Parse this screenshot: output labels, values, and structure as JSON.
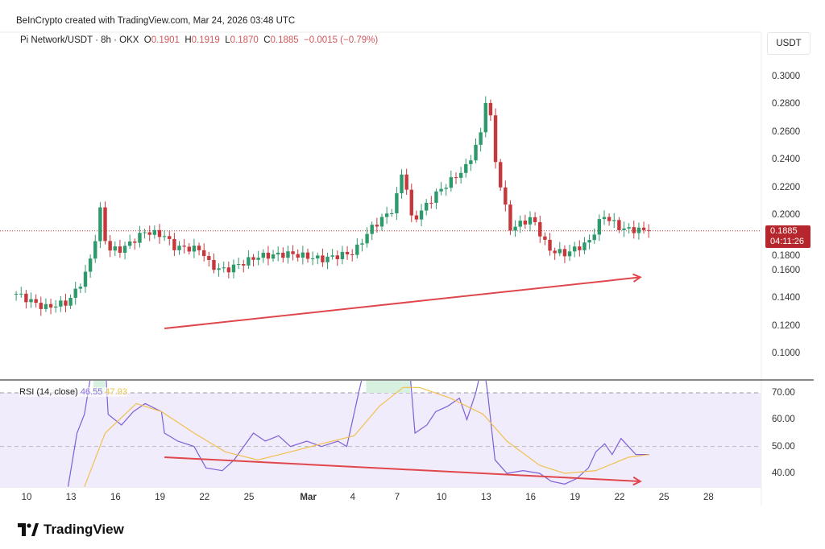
{
  "header": {
    "credit": "BeInCrypto created with TradingView.com, Mar 24, 2026 03:48 UTC",
    "symbol": "Pi Network/USDT · 8h · OKX",
    "o_label": "O",
    "o": "0.1901",
    "h_label": "H",
    "h": "0.1919",
    "l_label": "L",
    "l": "0.1870",
    "c_label": "C",
    "c": "0.1885",
    "change": "−0.0015 (−0.79%)"
  },
  "currency": "USDT",
  "last_price": {
    "price": "0.1885",
    "countdown": "04:11:26"
  },
  "rsi_legend": {
    "label": "RSI (14, close)",
    "rsi": "46.55",
    "ma": "47.93"
  },
  "brand": "TradingView",
  "colors": {
    "up": "#2e9a6c",
    "down": "#c7383d",
    "rsi": "#7e5fd6",
    "ma": "#f0c050",
    "arrow": "#e0474c",
    "rsi_band": "#f1ecfb"
  },
  "chart_data": [
    {
      "type": "candlestick",
      "title": "Pi Network/USDT 8h",
      "ylim": [
        0.085,
        0.31
      ],
      "yticks": [
        "0.3000",
        "0.2800",
        "0.2600",
        "0.2400",
        "0.2200",
        "0.2000",
        "0.1800",
        "0.1600",
        "0.1400",
        "0.1200",
        "0.1000"
      ],
      "ytick_values": [
        0.3,
        0.28,
        0.26,
        0.24,
        0.22,
        0.2,
        0.18,
        0.16,
        0.14,
        0.12,
        0.1
      ],
      "xticks": [
        "10",
        "13",
        "16",
        "19",
        "22",
        "25",
        "Mar",
        "4",
        "7",
        "10",
        "13",
        "16",
        "19",
        "22",
        "25",
        "28"
      ],
      "xtick_days": [
        0,
        3,
        6,
        9,
        12,
        15,
        19,
        22,
        25,
        28,
        31,
        34,
        37,
        40,
        43,
        46
      ],
      "close_keypoints_day_price": [
        [
          -0.7,
          0.143
        ],
        [
          1.2,
          0.133
        ],
        [
          2.8,
          0.137
        ],
        [
          3.9,
          0.155
        ],
        [
          4.5,
          0.175
        ],
        [
          5.0,
          0.205
        ],
        [
          5.4,
          0.175
        ],
        [
          6.4,
          0.175
        ],
        [
          8.0,
          0.188
        ],
        [
          9.3,
          0.185
        ],
        [
          9.9,
          0.177
        ],
        [
          11.8,
          0.175
        ],
        [
          12.4,
          0.163
        ],
        [
          13.4,
          0.16
        ],
        [
          15.6,
          0.17
        ],
        [
          17.8,
          0.172
        ],
        [
          19.9,
          0.168
        ],
        [
          22.1,
          0.173
        ],
        [
          23.2,
          0.19
        ],
        [
          24.8,
          0.205
        ],
        [
          25.4,
          0.235
        ],
        [
          26.0,
          0.195
        ],
        [
          27.6,
          0.215
        ],
        [
          29.7,
          0.235
        ],
        [
          30.7,
          0.26
        ],
        [
          31.1,
          0.295
        ],
        [
          31.5,
          0.245
        ],
        [
          32.2,
          0.21
        ],
        [
          32.6,
          0.19
        ],
        [
          34.1,
          0.198
        ],
        [
          35.2,
          0.175
        ],
        [
          36.3,
          0.172
        ],
        [
          37.9,
          0.18
        ],
        [
          38.9,
          0.2
        ],
        [
          40.1,
          0.19
        ],
        [
          42.1,
          0.1885
        ]
      ],
      "trendline": {
        "from": [
          9.3,
          0.118
        ],
        "to": [
          41.4,
          0.155
        ],
        "direction": "rising"
      }
    },
    {
      "type": "line",
      "title": "RSI (14, close)",
      "ylim": [
        35,
        72
      ],
      "yticks": [
        "70.00",
        "60.00",
        "50.00",
        "40.00"
      ],
      "ytick_values": [
        70,
        60,
        50,
        40
      ],
      "series": [
        {
          "name": "RSI",
          "values_day": [
            [
              2.8,
              35
            ],
            [
              3.4,
              55
            ],
            [
              3.9,
              62
            ],
            [
              4.5,
              82
            ],
            [
              5.3,
              82
            ],
            [
              5.5,
              62
            ],
            [
              6.4,
              58
            ],
            [
              7.2,
              63
            ],
            [
              8.0,
              66
            ],
            [
              9.1,
              63
            ],
            [
              9.3,
              55
            ],
            [
              10.2,
              52
            ],
            [
              11.3,
              50
            ],
            [
              12.1,
              42
            ],
            [
              13.2,
              41
            ],
            [
              14.0,
              45
            ],
            [
              15.3,
              55
            ],
            [
              16.1,
              52
            ],
            [
              17.0,
              54
            ],
            [
              17.8,
              50
            ],
            [
              18.9,
              52
            ],
            [
              19.9,
              50
            ],
            [
              21.0,
              52
            ],
            [
              21.6,
              50
            ],
            [
              22.4,
              70
            ],
            [
              22.9,
              82
            ],
            [
              25.4,
              82
            ],
            [
              25.9,
              75
            ],
            [
              26.2,
              55
            ],
            [
              27.0,
              58
            ],
            [
              27.6,
              63
            ],
            [
              28.4,
              65
            ],
            [
              29.2,
              68
            ],
            [
              29.7,
              60
            ],
            [
              30.3,
              70
            ],
            [
              30.8,
              82
            ],
            [
              31.1,
              70
            ],
            [
              31.6,
              45
            ],
            [
              32.4,
              40
            ],
            [
              33.5,
              41
            ],
            [
              34.6,
              40
            ],
            [
              35.4,
              37
            ],
            [
              36.3,
              36
            ],
            [
              37.1,
              38
            ],
            [
              37.9,
              42
            ],
            [
              38.4,
              48
            ],
            [
              39.0,
              51
            ],
            [
              39.5,
              47
            ],
            [
              40.1,
              53
            ],
            [
              40.6,
              50
            ],
            [
              41.1,
              47
            ],
            [
              42.0,
              47
            ]
          ]
        },
        {
          "name": "RSI MA",
          "values_day": [
            [
              3.9,
              35
            ],
            [
              5.3,
              55
            ],
            [
              7.4,
              66
            ],
            [
              9.1,
              63
            ],
            [
              11.3,
              55
            ],
            [
              13.4,
              48
            ],
            [
              15.6,
              45
            ],
            [
              17.8,
              48
            ],
            [
              19.9,
              51
            ],
            [
              22.1,
              54
            ],
            [
              23.8,
              65
            ],
            [
              25.4,
              72
            ],
            [
              26.5,
              72
            ],
            [
              28.6,
              68
            ],
            [
              30.8,
              62
            ],
            [
              32.4,
              52
            ],
            [
              34.6,
              43
            ],
            [
              36.3,
              40
            ],
            [
              38.4,
              41
            ],
            [
              40.6,
              46
            ],
            [
              42.0,
              47
            ]
          ]
        }
      ],
      "trendline": {
        "from": [
          9.3,
          46
        ],
        "to": [
          41.4,
          37
        ],
        "direction": "falling"
      }
    }
  ]
}
